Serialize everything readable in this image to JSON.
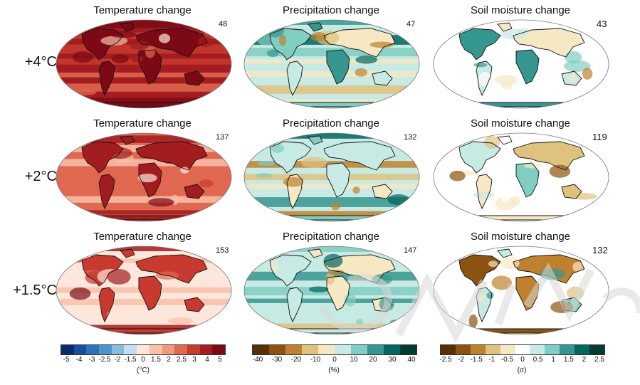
{
  "rows": [
    {
      "label": "+4°C",
      "panels": [
        {
          "title": "Temperature change",
          "count": "48"
        },
        {
          "title": "Precipitation change",
          "count": "47"
        },
        {
          "title": "Soil moisture change",
          "count": "43"
        }
      ]
    },
    {
      "label": "+2°C",
      "panels": [
        {
          "title": "Temperature change",
          "count": "137"
        },
        {
          "title": "Precipitation change",
          "count": "132"
        },
        {
          "title": "Soil moisture change",
          "count": "119"
        }
      ]
    },
    {
      "label": "+1.5°C",
      "panels": [
        {
          "title": "Temperature change",
          "count": "153"
        },
        {
          "title": "Precipitation change",
          "count": "147"
        },
        {
          "title": "Soil moisture change",
          "count": "132"
        }
      ]
    }
  ],
  "colorbars": [
    {
      "unit": "(°C)",
      "ticks": [
        "-5",
        "-4",
        "-3",
        "-2.5",
        "-2",
        "-1.5",
        "0",
        "1.5",
        "2",
        "2.5",
        "3",
        "4",
        "5"
      ],
      "colors": [
        "#0b2a6b",
        "#164f9e",
        "#2a72bb",
        "#4c95cc",
        "#86bddf",
        "#c4def0",
        "#fde6dc",
        "#f8c1a8",
        "#f09a7d",
        "#e06850",
        "#c83a2f",
        "#a31c1f",
        "#7c0a16"
      ]
    },
    {
      "unit": "(%)",
      "ticks": [
        "-40",
        "-30",
        "-20",
        "-10",
        "0",
        "10",
        "20",
        "30",
        "40"
      ],
      "colors": [
        "#543005",
        "#8c5210",
        "#bf812d",
        "#dfc27d",
        "#f6e8c3",
        "#c7eae5",
        "#80cdc1",
        "#35978f",
        "#01665e",
        "#003c30"
      ]
    },
    {
      "unit": "(σ)",
      "ticks": [
        "-2.5",
        "-2",
        "-1.5",
        "-1",
        "-0.5",
        "0",
        "0.5",
        "1",
        "1.5",
        "2",
        "2.5"
      ],
      "colors": [
        "#543005",
        "#8c5210",
        "#bf812d",
        "#dfc27d",
        "#f6e8c3",
        "#ffffff",
        "#c7eae5",
        "#80cdc1",
        "#35978f",
        "#01665e",
        "#003c30"
      ]
    }
  ],
  "map_palettes": {
    "temperature": [
      "#fde6dc",
      "#f8c1a8",
      "#e06850",
      "#c83a2f",
      "#a31c1f",
      "#7c0a16"
    ],
    "precipitation": [
      "#bf812d",
      "#dfc27d",
      "#f6e8c3",
      "#c7eae5",
      "#80cdc1",
      "#35978f",
      "#01665e"
    ],
    "soil": [
      "#8c5210",
      "#bf812d",
      "#dfc27d",
      "#f6e8c3",
      "#ffffff",
      "#c7eae5",
      "#80cdc1",
      "#35978f"
    ]
  },
  "watermark_color": "#d8d8d8"
}
